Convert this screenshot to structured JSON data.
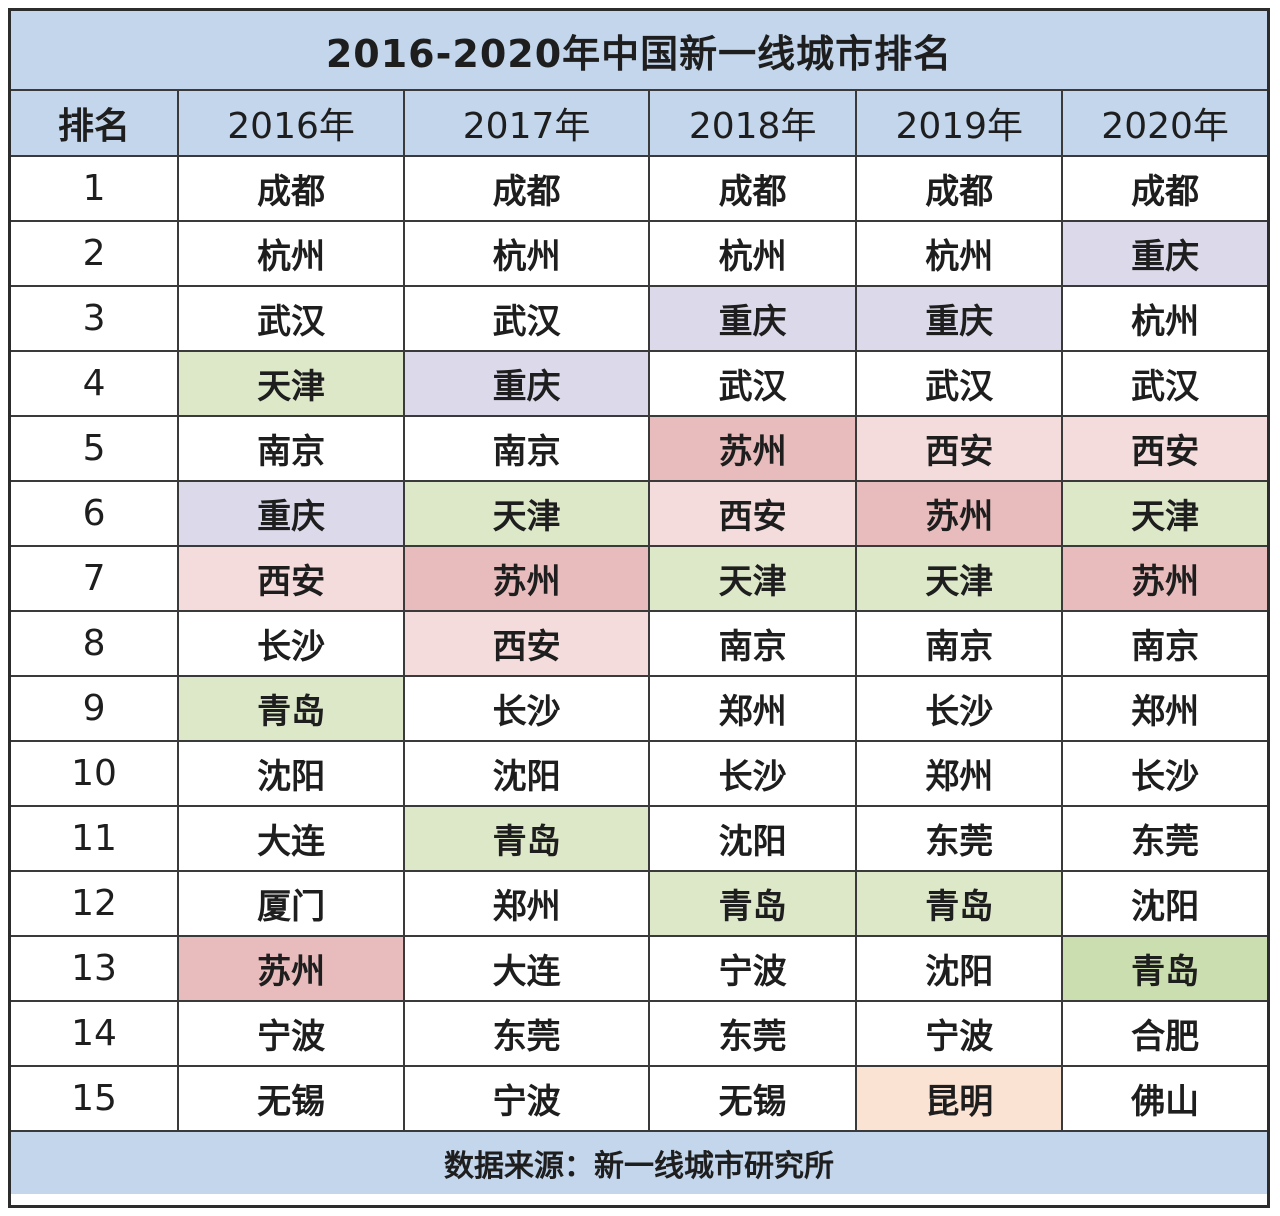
{
  "title": "2016-2020年中国新一线城市排名",
  "headers": [
    "排名",
    "2016年",
    "2017年",
    "2018年",
    "2019年",
    "2020年"
  ],
  "colors": {
    "header_bg": "#c3d6ec",
    "none": "#ffffff",
    "chongqing": "#dcdaea",
    "tianjin": "#dde8c9",
    "qingdao": "#dde8c9",
    "qingdao_strong": "#cbdeb0",
    "suzhou": "#e8bcbc",
    "xian": "#f4dcdc",
    "kunming": "#fbe3d3"
  },
  "rows": [
    {
      "rank": "1",
      "cells": [
        {
          "text": "成都",
          "hl": "none"
        },
        {
          "text": "成都",
          "hl": "none"
        },
        {
          "text": "成都",
          "hl": "none"
        },
        {
          "text": "成都",
          "hl": "none"
        },
        {
          "text": "成都",
          "hl": "none"
        }
      ]
    },
    {
      "rank": "2",
      "cells": [
        {
          "text": "杭州",
          "hl": "none"
        },
        {
          "text": "杭州",
          "hl": "none"
        },
        {
          "text": "杭州",
          "hl": "none"
        },
        {
          "text": "杭州",
          "hl": "none"
        },
        {
          "text": "重庆",
          "hl": "chongqing"
        }
      ]
    },
    {
      "rank": "3",
      "cells": [
        {
          "text": "武汉",
          "hl": "none"
        },
        {
          "text": "武汉",
          "hl": "none"
        },
        {
          "text": "重庆",
          "hl": "chongqing"
        },
        {
          "text": "重庆",
          "hl": "chongqing"
        },
        {
          "text": "杭州",
          "hl": "none"
        }
      ]
    },
    {
      "rank": "4",
      "cells": [
        {
          "text": "天津",
          "hl": "tianjin"
        },
        {
          "text": "重庆",
          "hl": "chongqing"
        },
        {
          "text": "武汉",
          "hl": "none"
        },
        {
          "text": "武汉",
          "hl": "none"
        },
        {
          "text": "武汉",
          "hl": "none"
        }
      ]
    },
    {
      "rank": "5",
      "cells": [
        {
          "text": "南京",
          "hl": "none"
        },
        {
          "text": "南京",
          "hl": "none"
        },
        {
          "text": "苏州",
          "hl": "suzhou"
        },
        {
          "text": "西安",
          "hl": "xian"
        },
        {
          "text": "西安",
          "hl": "xian"
        }
      ]
    },
    {
      "rank": "6",
      "cells": [
        {
          "text": "重庆",
          "hl": "chongqing"
        },
        {
          "text": "天津",
          "hl": "tianjin"
        },
        {
          "text": "西安",
          "hl": "xian"
        },
        {
          "text": "苏州",
          "hl": "suzhou"
        },
        {
          "text": "天津",
          "hl": "tianjin"
        }
      ]
    },
    {
      "rank": "7",
      "cells": [
        {
          "text": "西安",
          "hl": "xian"
        },
        {
          "text": "苏州",
          "hl": "suzhou"
        },
        {
          "text": "天津",
          "hl": "tianjin"
        },
        {
          "text": "天津",
          "hl": "tianjin"
        },
        {
          "text": "苏州",
          "hl": "suzhou"
        }
      ]
    },
    {
      "rank": "8",
      "cells": [
        {
          "text": "长沙",
          "hl": "none"
        },
        {
          "text": "西安",
          "hl": "xian"
        },
        {
          "text": "南京",
          "hl": "none"
        },
        {
          "text": "南京",
          "hl": "none"
        },
        {
          "text": "南京",
          "hl": "none"
        }
      ]
    },
    {
      "rank": "9",
      "cells": [
        {
          "text": "青岛",
          "hl": "qingdao"
        },
        {
          "text": "长沙",
          "hl": "none"
        },
        {
          "text": "郑州",
          "hl": "none"
        },
        {
          "text": "长沙",
          "hl": "none"
        },
        {
          "text": "郑州",
          "hl": "none"
        }
      ]
    },
    {
      "rank": "10",
      "cells": [
        {
          "text": "沈阳",
          "hl": "none"
        },
        {
          "text": "沈阳",
          "hl": "none"
        },
        {
          "text": "长沙",
          "hl": "none"
        },
        {
          "text": "郑州",
          "hl": "none"
        },
        {
          "text": "长沙",
          "hl": "none"
        }
      ]
    },
    {
      "rank": "11",
      "cells": [
        {
          "text": "大连",
          "hl": "none"
        },
        {
          "text": "青岛",
          "hl": "qingdao"
        },
        {
          "text": "沈阳",
          "hl": "none"
        },
        {
          "text": "东莞",
          "hl": "none"
        },
        {
          "text": "东莞",
          "hl": "none"
        }
      ]
    },
    {
      "rank": "12",
      "cells": [
        {
          "text": "厦门",
          "hl": "none"
        },
        {
          "text": "郑州",
          "hl": "none"
        },
        {
          "text": "青岛",
          "hl": "qingdao"
        },
        {
          "text": "青岛",
          "hl": "qingdao"
        },
        {
          "text": "沈阳",
          "hl": "none"
        }
      ]
    },
    {
      "rank": "13",
      "cells": [
        {
          "text": "苏州",
          "hl": "suzhou"
        },
        {
          "text": "大连",
          "hl": "none"
        },
        {
          "text": "宁波",
          "hl": "none"
        },
        {
          "text": "沈阳",
          "hl": "none"
        },
        {
          "text": "青岛",
          "hl": "qingdao_strong"
        }
      ]
    },
    {
      "rank": "14",
      "cells": [
        {
          "text": "宁波",
          "hl": "none"
        },
        {
          "text": "东莞",
          "hl": "none"
        },
        {
          "text": "东莞",
          "hl": "none"
        },
        {
          "text": "宁波",
          "hl": "none"
        },
        {
          "text": "合肥",
          "hl": "none"
        }
      ]
    },
    {
      "rank": "15",
      "cells": [
        {
          "text": "无锡",
          "hl": "none"
        },
        {
          "text": "宁波",
          "hl": "none"
        },
        {
          "text": "无锡",
          "hl": "none"
        },
        {
          "text": "昆明",
          "hl": "kunming"
        },
        {
          "text": "佛山",
          "hl": "none"
        }
      ]
    }
  ],
  "source": "数据来源：新一线城市研究所"
}
